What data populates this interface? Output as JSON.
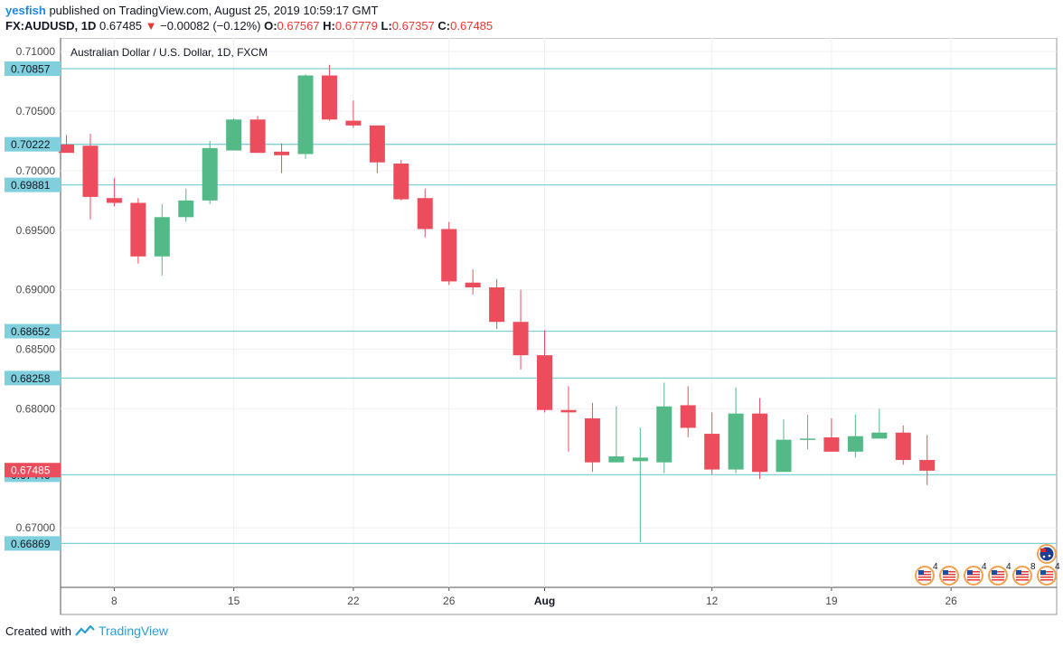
{
  "header": {
    "user": "yesfish",
    "published": "published on TradingView.com, August 25, 2019 10:59:17 GMT",
    "symbol": "FX:AUDUSD, 1D",
    "last": "0.67485",
    "change": "−0.00082 (−0.12%)",
    "o_label": "O:",
    "o_val": "0.67567",
    "h_label": "H:",
    "h_val": "0.67779",
    "l_label": "L:",
    "l_val": "0.67357",
    "c_label": "C:",
    "c_val": "0.67485"
  },
  "footer": {
    "created_with": "Created with",
    "brand": "TradingView"
  },
  "colors": {
    "up": "#53b987",
    "down": "#eb4d5c",
    "level": "#81cfd9",
    "label_bg": "#7fcfdd",
    "current_bg": "#eb4d5c"
  },
  "chart_data": {
    "type": "candlestick",
    "title": "Australian Dollar / U.S. Dollar, 1D, FXCM",
    "ylim": [
      0.665,
      0.711
    ],
    "y_ticks": [
      "0.71000",
      "0.70500",
      "0.70000",
      "0.69500",
      "0.69000",
      "0.68500",
      "0.68000",
      "0.67000"
    ],
    "x_ticks": [
      {
        "label": "8",
        "index": 2
      },
      {
        "label": "15",
        "index": 7
      },
      {
        "label": "22",
        "index": 12
      },
      {
        "label": "26",
        "index": 16
      },
      {
        "label": "Aug",
        "index": 20
      },
      {
        "label": "12",
        "index": 27
      },
      {
        "label": "19",
        "index": 32
      },
      {
        "label": "26",
        "index": 37
      }
    ],
    "levels": [
      "0.70857",
      "0.70222",
      "0.69881",
      "0.68652",
      "0.68258",
      "0.67446",
      "0.66869"
    ],
    "current_price": "0.67485",
    "candles": [
      {
        "o": 0.7022,
        "h": 0.703,
        "l": 0.7015,
        "c": 0.7015
      },
      {
        "o": 0.7021,
        "h": 0.7031,
        "l": 0.6959,
        "c": 0.6978
      },
      {
        "o": 0.6977,
        "h": 0.6994,
        "l": 0.697,
        "c": 0.6973
      },
      {
        "o": 0.6973,
        "h": 0.6977,
        "l": 0.6922,
        "c": 0.6928
      },
      {
        "o": 0.6928,
        "h": 0.6972,
        "l": 0.6912,
        "c": 0.6961
      },
      {
        "o": 0.6961,
        "h": 0.6985,
        "l": 0.6957,
        "c": 0.6975
      },
      {
        "o": 0.6975,
        "h": 0.7025,
        "l": 0.6972,
        "c": 0.7019
      },
      {
        "o": 0.7017,
        "h": 0.7044,
        "l": 0.7017,
        "c": 0.7043
      },
      {
        "o": 0.7043,
        "h": 0.7046,
        "l": 0.7015,
        "c": 0.7015
      },
      {
        "o": 0.7016,
        "h": 0.7023,
        "l": 0.6998,
        "c": 0.7013
      },
      {
        "o": 0.7014,
        "h": 0.7081,
        "l": 0.701,
        "c": 0.708
      },
      {
        "o": 0.708,
        "h": 0.7089,
        "l": 0.7042,
        "c": 0.7043
      },
      {
        "o": 0.7042,
        "h": 0.7059,
        "l": 0.7036,
        "c": 0.7038
      },
      {
        "o": 0.7038,
        "h": 0.7038,
        "l": 0.6998,
        "c": 0.7007
      },
      {
        "o": 0.7006,
        "h": 0.7009,
        "l": 0.6975,
        "c": 0.6976
      },
      {
        "o": 0.6977,
        "h": 0.6985,
        "l": 0.6944,
        "c": 0.6951
      },
      {
        "o": 0.6951,
        "h": 0.6957,
        "l": 0.6904,
        "c": 0.6907
      },
      {
        "o": 0.6906,
        "h": 0.6917,
        "l": 0.6896,
        "c": 0.6902
      },
      {
        "o": 0.6902,
        "h": 0.6909,
        "l": 0.6867,
        "c": 0.6873
      },
      {
        "o": 0.6873,
        "h": 0.69,
        "l": 0.6833,
        "c": 0.6845
      },
      {
        "o": 0.6845,
        "h": 0.6866,
        "l": 0.6797,
        "c": 0.6799
      },
      {
        "o": 0.6799,
        "h": 0.6819,
        "l": 0.6764,
        "c": 0.6797
      },
      {
        "o": 0.6792,
        "h": 0.6805,
        "l": 0.6747,
        "c": 0.6755
      },
      {
        "o": 0.6755,
        "h": 0.6802,
        "l": 0.6755,
        "c": 0.676
      },
      {
        "o": 0.6756,
        "h": 0.6784,
        "l": 0.6688,
        "c": 0.6759
      },
      {
        "o": 0.6755,
        "h": 0.6822,
        "l": 0.6746,
        "c": 0.6802
      },
      {
        "o": 0.6803,
        "h": 0.6819,
        "l": 0.6776,
        "c": 0.6784
      },
      {
        "o": 0.6779,
        "h": 0.6797,
        "l": 0.6745,
        "c": 0.6749
      },
      {
        "o": 0.6749,
        "h": 0.6818,
        "l": 0.6746,
        "c": 0.6796
      },
      {
        "o": 0.6796,
        "h": 0.6809,
        "l": 0.6741,
        "c": 0.6747
      },
      {
        "o": 0.6747,
        "h": 0.6791,
        "l": 0.6747,
        "c": 0.6774
      },
      {
        "o": 0.6774,
        "h": 0.6795,
        "l": 0.6766,
        "c": 0.6775
      },
      {
        "o": 0.6776,
        "h": 0.6792,
        "l": 0.6764,
        "c": 0.6764
      },
      {
        "o": 0.6764,
        "h": 0.6795,
        "l": 0.6759,
        "c": 0.6777
      },
      {
        "o": 0.6775,
        "h": 0.68,
        "l": 0.6775,
        "c": 0.678
      },
      {
        "o": 0.678,
        "h": 0.6786,
        "l": 0.6753,
        "c": 0.6757
      },
      {
        "o": 0.6757,
        "h": 0.6778,
        "l": 0.6736,
        "c": 0.6748
      }
    ],
    "event_badges": [
      {
        "flag": "us",
        "count": "4"
      },
      {
        "flag": "us",
        "count": ""
      },
      {
        "flag": "us",
        "count": "4"
      },
      {
        "flag": "us",
        "count": "4"
      },
      {
        "flag": "us",
        "count": "8"
      },
      {
        "flag": "us",
        "count": "4"
      },
      {
        "flag": "au",
        "count": ""
      }
    ]
  }
}
